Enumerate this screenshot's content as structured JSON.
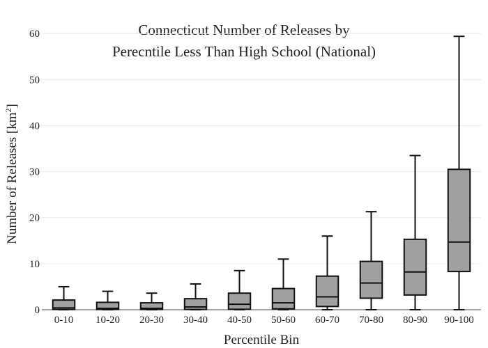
{
  "chart_data": {
    "type": "boxplot",
    "title_line1": "Connecticut Number of Releases by",
    "title_line2": "Perecntile Less Than High School (National)",
    "xlabel": "Percentile Bin",
    "ylabel": "Number of Releases  [km",
    "ylabel_sup": "2",
    "ylabel_close": "]",
    "ylim": [
      0,
      62
    ],
    "yticks": [
      0,
      10,
      20,
      30,
      40,
      50,
      60
    ],
    "ytick_labels": [
      "0",
      "10",
      "20",
      "30",
      "40",
      "50",
      "60"
    ],
    "grid": true,
    "colors": {
      "box_fill": "#a0a0a0",
      "box_stroke": "#111111",
      "grid": "#ececec"
    },
    "categories": [
      "0-10",
      "10-20",
      "20-30",
      "30-40",
      "40-50",
      "50-60",
      "60-70",
      "70-80",
      "80-90",
      "90-100"
    ],
    "boxes": [
      {
        "min": 0,
        "q1": 0.05,
        "median": 0.4,
        "q3": 2.1,
        "max": 5.0
      },
      {
        "min": 0,
        "q1": 0.05,
        "median": 0.3,
        "q3": 1.6,
        "max": 4.0
      },
      {
        "min": 0,
        "q1": 0.05,
        "median": 0.3,
        "q3": 1.5,
        "max": 3.6
      },
      {
        "min": 0,
        "q1": 0.05,
        "median": 0.6,
        "q3": 2.4,
        "max": 5.6
      },
      {
        "min": 0,
        "q1": 0.1,
        "median": 1.2,
        "q3": 3.6,
        "max": 8.5
      },
      {
        "min": 0,
        "q1": 0.2,
        "median": 1.5,
        "q3": 4.6,
        "max": 11.0
      },
      {
        "min": 0,
        "q1": 0.7,
        "median": 2.8,
        "q3": 7.3,
        "max": 16.0
      },
      {
        "min": 0,
        "q1": 2.5,
        "median": 5.8,
        "q3": 10.5,
        "max": 21.3
      },
      {
        "min": 0,
        "q1": 3.2,
        "median": 8.2,
        "q3": 15.3,
        "max": 33.5
      },
      {
        "min": 0,
        "q1": 8.3,
        "median": 14.7,
        "q3": 30.5,
        "max": 59.4
      }
    ]
  }
}
